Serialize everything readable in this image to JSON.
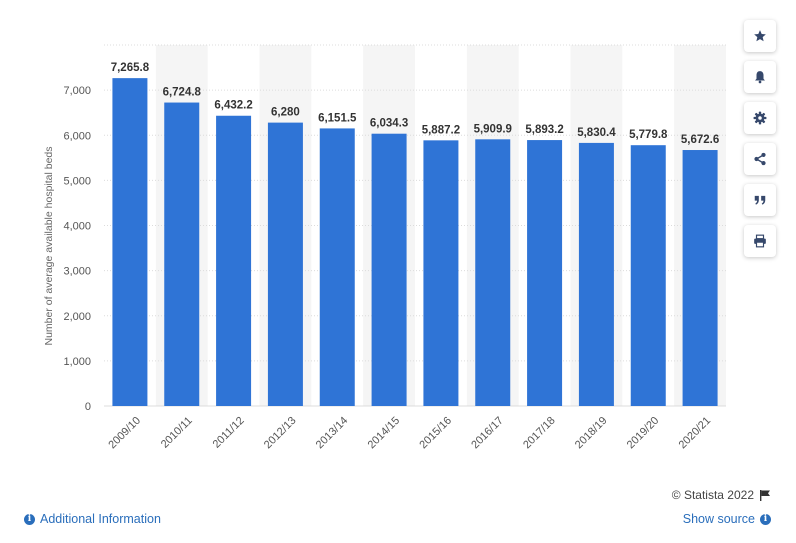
{
  "chart_data": {
    "type": "bar",
    "categories": [
      "2009/10",
      "2010/11",
      "2011/12",
      "2012/13",
      "2013/14",
      "2014/15",
      "2015/16",
      "2016/17",
      "2017/18",
      "2018/19",
      "2019/20",
      "2020/21"
    ],
    "values": [
      7265.8,
      6724.8,
      6432.2,
      6280,
      6151.5,
      6034.3,
      5887.2,
      5909.9,
      5893.2,
      5830.4,
      5779.8,
      5672.6
    ],
    "value_labels": [
      "7,265.8",
      "6,724.8",
      "6,432.2",
      "6,280",
      "6,151.5",
      "6,034.3",
      "5,887.2",
      "5,909.9",
      "5,893.2",
      "5,830.4",
      "5,779.8",
      "5,672.6"
    ],
    "ylabel": "Number of average available hospital beds",
    "xlabel": "",
    "ylim": [
      0,
      8000
    ],
    "yticks": [
      0,
      1000,
      2000,
      3000,
      4000,
      5000,
      6000,
      7000
    ],
    "ytick_labels": [
      "0",
      "1,000",
      "2,000",
      "3,000",
      "4,000",
      "5,000",
      "6,000",
      "7,000"
    ],
    "grid": true,
    "bar_color": "#2f74d6"
  },
  "toolbar": {
    "buttons": [
      "star-icon",
      "bell-icon",
      "gear-icon",
      "share-icon",
      "quote-icon",
      "print-icon"
    ],
    "icon_color": "#36486b"
  },
  "footer": {
    "additional_info": "Additional Information",
    "show_source": "Show source",
    "copyright": "© Statista 2022"
  },
  "colors": {
    "link": "#2a6ebb",
    "alt_band": "#f5f5f5"
  }
}
